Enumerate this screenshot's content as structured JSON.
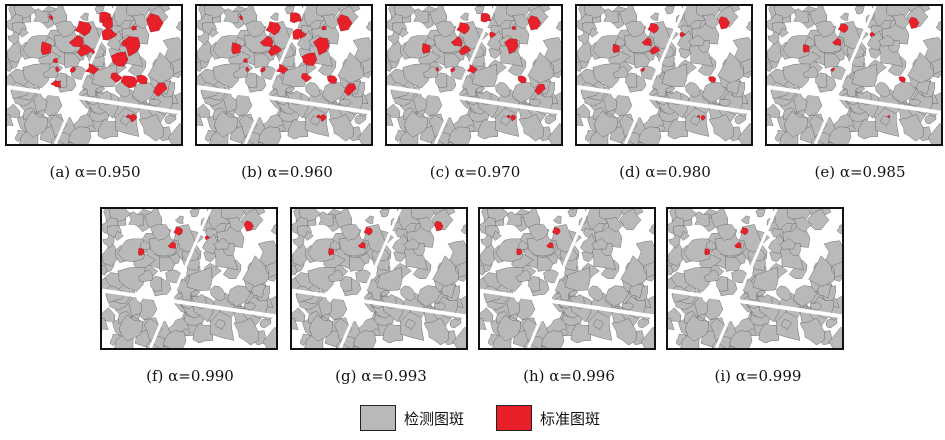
{
  "colors": {
    "detected": "#b9b9b9",
    "standard": "#e8202a",
    "outline": "#555555"
  },
  "panels": [
    {
      "id": "a",
      "caption": "(a) α=0.950",
      "alpha": 0.95
    },
    {
      "id": "b",
      "caption": "(b) α=0.960",
      "alpha": 0.96
    },
    {
      "id": "c",
      "caption": "(c) α=0.970",
      "alpha": 0.97
    },
    {
      "id": "d",
      "caption": "(d) α=0.980",
      "alpha": 0.98
    },
    {
      "id": "e",
      "caption": "(e) α=0.985",
      "alpha": 0.985
    },
    {
      "id": "f",
      "caption": "(f) α=0.990",
      "alpha": 0.99
    },
    {
      "id": "g",
      "caption": "(g) α=0.993",
      "alpha": 0.993
    },
    {
      "id": "h",
      "caption": "(h) α=0.996",
      "alpha": 0.996
    },
    {
      "id": "i",
      "caption": "(i) α=0.999",
      "alpha": 0.999
    }
  ],
  "legend": {
    "detected_label": "检测图斑",
    "standard_label": "标准图斑"
  }
}
